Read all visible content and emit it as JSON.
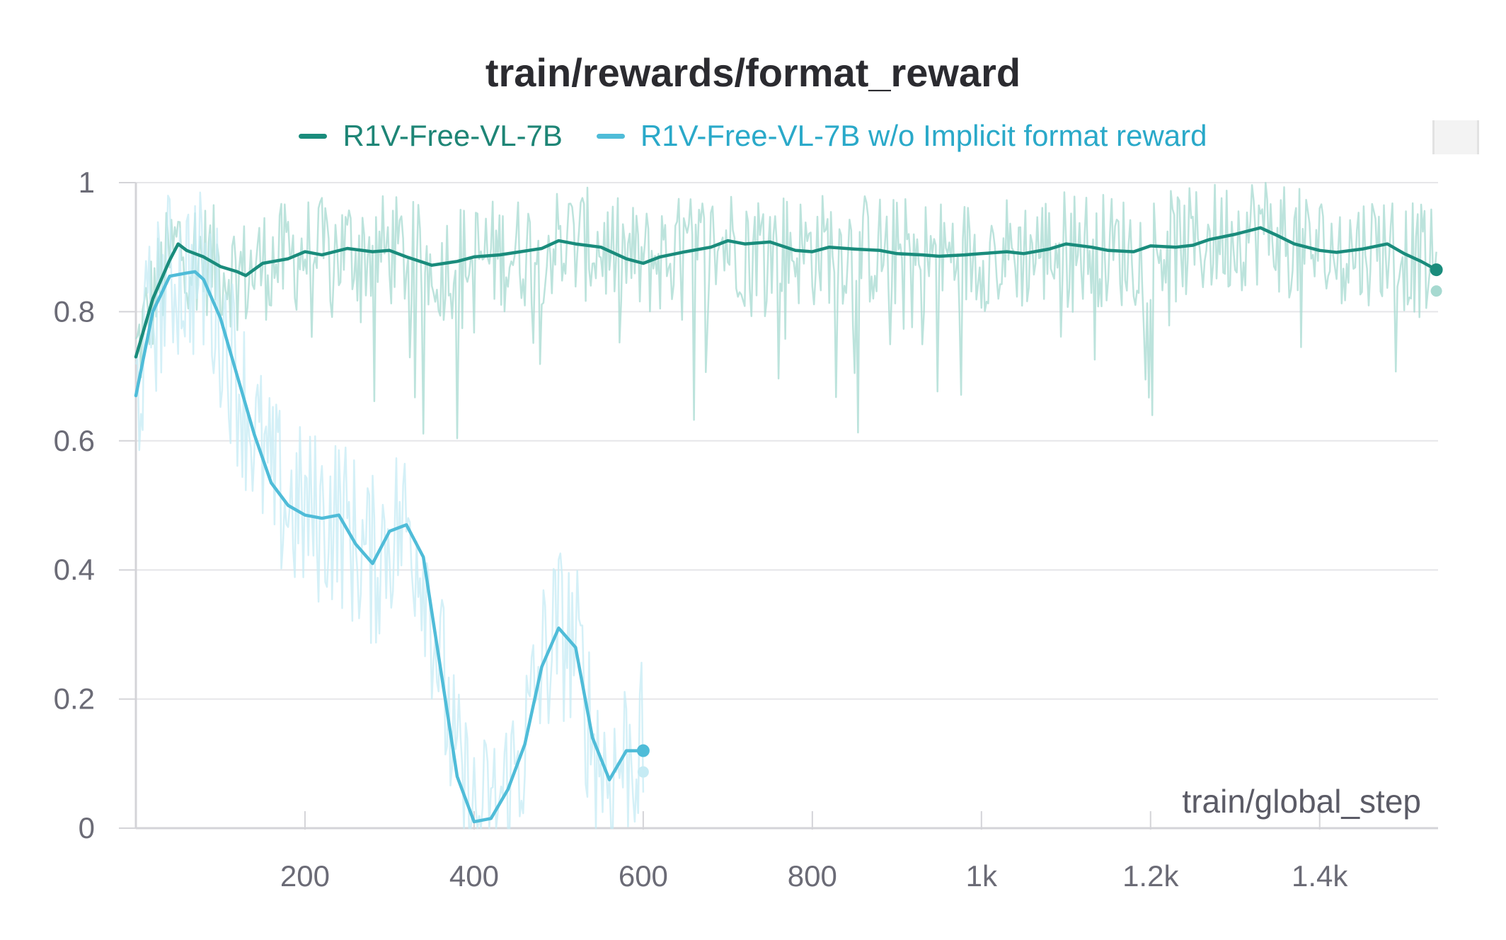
{
  "chart_data": {
    "type": "line",
    "title": "train/rewards/format_reward",
    "xlabel": "train/global_step",
    "ylabel": "",
    "xlim": [
      0,
      1540
    ],
    "ylim": [
      0,
      1
    ],
    "x_ticks": [
      {
        "value": 200,
        "label": "200"
      },
      {
        "value": 400,
        "label": "400"
      },
      {
        "value": 600,
        "label": "600"
      },
      {
        "value": 800,
        "label": "800"
      },
      {
        "value": 1000,
        "label": "1k"
      },
      {
        "value": 1200,
        "label": "1.2k"
      },
      {
        "value": 1400,
        "label": "1.4k"
      }
    ],
    "y_ticks": [
      {
        "value": 0,
        "label": "0"
      },
      {
        "value": 0.2,
        "label": "0.2"
      },
      {
        "value": 0.4,
        "label": "0.4"
      },
      {
        "value": 0.6,
        "label": "0.6"
      },
      {
        "value": 0.8,
        "label": "0.8"
      },
      {
        "value": 1,
        "label": "1"
      }
    ],
    "grid": true,
    "legend_position": "top-center",
    "series": [
      {
        "name": "R1V-Free-VL-7B",
        "color": "#1a8c7c",
        "raw_color": "#a6d9d0",
        "x": [
          0,
          20,
          40,
          50,
          60,
          80,
          100,
          120,
          130,
          150,
          180,
          200,
          220,
          250,
          280,
          300,
          320,
          350,
          380,
          400,
          430,
          450,
          480,
          500,
          520,
          550,
          580,
          600,
          620,
          650,
          680,
          700,
          720,
          750,
          780,
          800,
          820,
          850,
          880,
          900,
          930,
          950,
          980,
          1000,
          1030,
          1050,
          1080,
          1100,
          1130,
          1150,
          1180,
          1200,
          1230,
          1250,
          1270,
          1300,
          1330,
          1350,
          1370,
          1400,
          1420,
          1450,
          1480,
          1500,
          1520,
          1538
        ],
        "y": [
          0.73,
          0.82,
          0.88,
          0.905,
          0.895,
          0.885,
          0.87,
          0.862,
          0.856,
          0.875,
          0.882,
          0.893,
          0.888,
          0.898,
          0.893,
          0.895,
          0.885,
          0.872,
          0.878,
          0.885,
          0.888,
          0.892,
          0.898,
          0.91,
          0.905,
          0.9,
          0.882,
          0.875,
          0.885,
          0.893,
          0.9,
          0.91,
          0.905,
          0.908,
          0.895,
          0.893,
          0.9,
          0.897,
          0.895,
          0.89,
          0.888,
          0.886,
          0.888,
          0.89,
          0.893,
          0.89,
          0.897,
          0.905,
          0.9,
          0.895,
          0.893,
          0.902,
          0.9,
          0.903,
          0.912,
          0.92,
          0.93,
          0.918,
          0.905,
          0.895,
          0.892,
          0.897,
          0.905,
          0.89,
          0.878,
          0.865
        ]
      },
      {
        "name": "R1V-Free-VL-7B w/o Implicit format reward",
        "color": "#4fbcd8",
        "raw_color": "#c6ebf4",
        "x": [
          0,
          20,
          40,
          60,
          70,
          80,
          100,
          120,
          140,
          160,
          180,
          200,
          220,
          240,
          260,
          280,
          300,
          320,
          340,
          360,
          380,
          400,
          420,
          440,
          460,
          480,
          500,
          520,
          540,
          560,
          580,
          600
        ],
        "y": [
          0.67,
          0.8,
          0.855,
          0.86,
          0.862,
          0.85,
          0.79,
          0.7,
          0.61,
          0.535,
          0.5,
          0.485,
          0.48,
          0.485,
          0.44,
          0.41,
          0.46,
          0.47,
          0.42,
          0.25,
          0.08,
          0.01,
          0.015,
          0.06,
          0.13,
          0.25,
          0.31,
          0.28,
          0.14,
          0.075,
          0.12,
          0.12
        ]
      }
    ]
  }
}
